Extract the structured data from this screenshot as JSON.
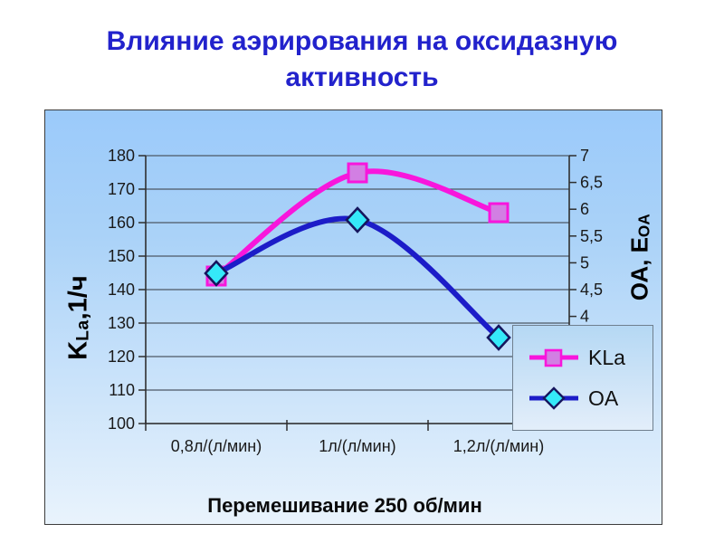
{
  "slide": {
    "title": "Влияние аэрирования на оксидазную активность"
  },
  "chart_data": {
    "type": "line",
    "smoothed": true,
    "categories": [
      "0,8л/(л/мин)",
      "1л/(л/мин)",
      "1,2л/(л/мин)"
    ],
    "series": [
      {
        "name": "KLa",
        "axis": "left",
        "values": [
          144,
          175,
          163
        ],
        "line_color": "#f816dc",
        "marker": "square",
        "marker_fill": "#d27fe3",
        "marker_stroke": "#f816dc"
      },
      {
        "name": "OA",
        "axis": "right",
        "values": [
          4.8,
          5.8,
          3.6
        ],
        "line_color": "#1c1cc8",
        "marker": "diamond",
        "marker_fill": "#35e9f9",
        "marker_stroke": "#16165e"
      }
    ],
    "xlabel": "Перемешивание 250 об/мин",
    "ylabel_left": {
      "main": "K",
      "sub": "La",
      "rest": ",1/ч"
    },
    "ylabel_right": {
      "main": "ОА, Е",
      "sub": "ОА"
    },
    "ylim_left": [
      100,
      180
    ],
    "yticks_left": [
      "180",
      "170",
      "160",
      "150",
      "140",
      "130",
      "120",
      "110",
      "100"
    ],
    "ylim_right_full": [
      2,
      7
    ],
    "yticks_right_visible": [
      "7",
      "6,5",
      "6",
      "5,5",
      "5",
      "4,5",
      "4"
    ],
    "grid": true,
    "legend_position": "inside-bottom-right",
    "legend_entries": [
      "KLa",
      "OA"
    ]
  },
  "colors": {
    "title_text": "#2222cc",
    "gridline": "#4d5866",
    "axis_line": "#2f2f2f",
    "tick_text": "#1a1a1a",
    "chart_bg_top": "#9bcafa",
    "chart_bg_bottom": "#e9f3fc"
  }
}
